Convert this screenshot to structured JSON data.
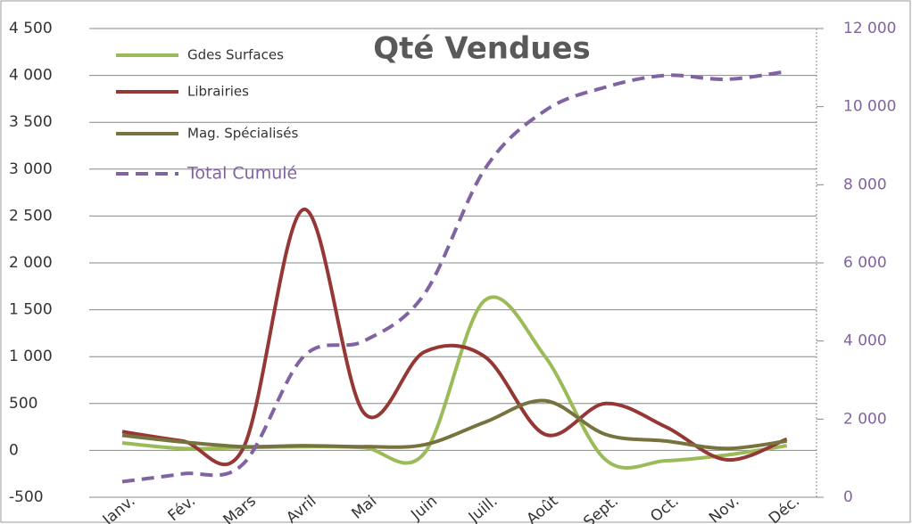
{
  "chart_data": {
    "type": "line",
    "title": "Qté Vendues",
    "categories": [
      "Janv.",
      "Fév.",
      "Mars",
      "Avril",
      "Mai",
      "Juin",
      "Juill.",
      "Août",
      "Sept.",
      "Oct.",
      "Nov.",
      "Déc."
    ],
    "series": [
      {
        "name": "Gdes Surfaces",
        "color": "#9bbb59",
        "values": [
          80,
          20,
          30,
          40,
          30,
          -30,
          1600,
          1000,
          -100,
          -110,
          -50,
          50
        ]
      },
      {
        "name": "Librairies",
        "color": "#953735",
        "values": [
          200,
          100,
          20,
          2570,
          400,
          1050,
          1000,
          170,
          500,
          250,
          -100,
          120
        ]
      },
      {
        "name": "Mag. Spécialisés",
        "color": "#77733f",
        "values": [
          160,
          90,
          40,
          50,
          40,
          60,
          300,
          530,
          170,
          100,
          20,
          100
        ]
      },
      {
        "name": "Total Cumulé",
        "color": "#8064a2",
        "axis": "y2",
        "dashed": true,
        "values": [
          400,
          600,
          850,
          3600,
          4000,
          5200,
          8400,
          9900,
          10500,
          10800,
          10700,
          10900
        ]
      }
    ],
    "ylim": [
      -500,
      4500
    ],
    "yticks": [
      -500,
      0,
      500,
      {
        "value": 1000,
        "label": "1 000"
      },
      {
        "value": 1500,
        "label": "1 500"
      },
      {
        "value": 2000,
        "label": "2 000"
      },
      {
        "value": 2500,
        "label": "2 500"
      },
      {
        "value": 3000,
        "label": "3 000"
      },
      {
        "value": 3500,
        "label": "3 500"
      },
      {
        "value": 4000,
        "label": "4 000"
      },
      {
        "value": 4500,
        "label": "4 500"
      }
    ],
    "y2lim": [
      0,
      12000
    ],
    "y2ticks": [
      0,
      {
        "value": 2000,
        "label": "2 000"
      },
      {
        "value": 4000,
        "label": "4 000"
      },
      {
        "value": 6000,
        "label": "6 000"
      },
      {
        "value": 8000,
        "label": "8 000"
      },
      {
        "value": 10000,
        "label": "10 000"
      },
      {
        "value": 12000,
        "label": "12 000"
      }
    ],
    "grid": true,
    "legend": "top-left"
  }
}
